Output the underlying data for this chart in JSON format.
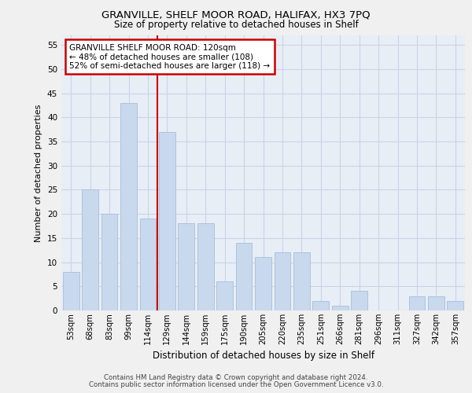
{
  "title1": "GRANVILLE, SHELF MOOR ROAD, HALIFAX, HX3 7PQ",
  "title2": "Size of property relative to detached houses in Shelf",
  "xlabel": "Distribution of detached houses by size in Shelf",
  "ylabel": "Number of detached properties",
  "categories": [
    "53sqm",
    "68sqm",
    "83sqm",
    "99sqm",
    "114sqm",
    "129sqm",
    "144sqm",
    "159sqm",
    "175sqm",
    "190sqm",
    "205sqm",
    "220sqm",
    "235sqm",
    "251sqm",
    "266sqm",
    "281sqm",
    "296sqm",
    "311sqm",
    "327sqm",
    "342sqm",
    "357sqm"
  ],
  "values": [
    8,
    25,
    20,
    43,
    19,
    37,
    18,
    18,
    6,
    14,
    11,
    12,
    12,
    2,
    1,
    4,
    0,
    0,
    3,
    3,
    2
  ],
  "bar_color": "#c8d9ee",
  "bar_edge_color": "#a8bdd8",
  "grid_color": "#c8d4e8",
  "background_color": "#e8eef6",
  "ref_line_color": "#cc0000",
  "annotation_text": "GRANVILLE SHELF MOOR ROAD: 120sqm\n← 48% of detached houses are smaller (108)\n52% of semi-detached houses are larger (118) →",
  "annotation_box_color": "#ffffff",
  "annotation_box_edge_color": "#cc0000",
  "ylim": [
    0,
    57
  ],
  "yticks": [
    0,
    5,
    10,
    15,
    20,
    25,
    30,
    35,
    40,
    45,
    50,
    55
  ],
  "footer1": "Contains HM Land Registry data © Crown copyright and database right 2024.",
  "footer2": "Contains public sector information licensed under the Open Government Licence v3.0."
}
